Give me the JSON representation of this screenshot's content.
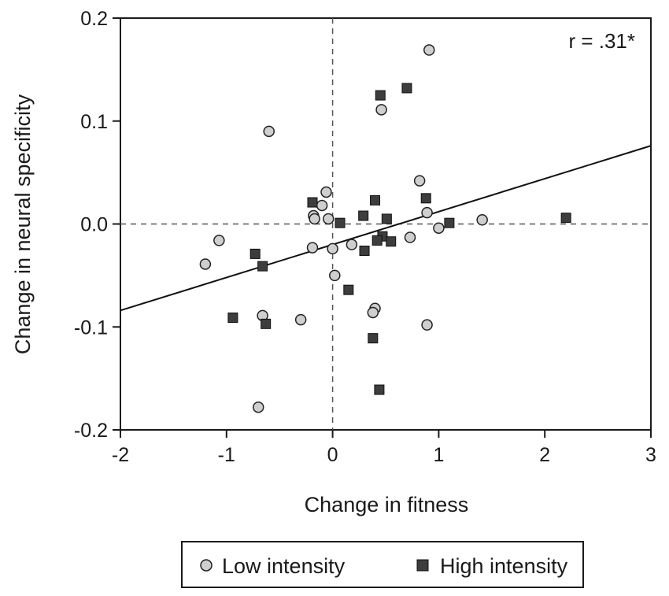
{
  "chart_data": {
    "type": "scatter",
    "title": "",
    "xlabel": "Change in fitness",
    "ylabel": "Change in neural specificity",
    "xlim": [
      -2,
      3
    ],
    "ylim": [
      -0.2,
      0.2
    ],
    "x_ticks": [
      -2,
      -1,
      0,
      1,
      2,
      3
    ],
    "x_tick_labels": [
      "-2",
      "-1",
      "0",
      "1",
      "2",
      "3"
    ],
    "y_ticks": [
      -0.2,
      -0.1,
      0.0,
      0.1,
      0.2
    ],
    "y_tick_labels": [
      "-0.2",
      "-0.1",
      "0.0",
      "0.1",
      "0.2"
    ],
    "reference_lines": {
      "x": 0,
      "y": 0,
      "style": "dashed"
    },
    "annotation": "r = .31*",
    "fit_line": {
      "x": [
        -2,
        3
      ],
      "y": [
        -0.084,
        0.076
      ]
    },
    "series": [
      {
        "name": "Low intensity",
        "marker": "circle",
        "color": "#cfcfcf",
        "points": [
          {
            "x": 0.91,
            "y": 0.169
          },
          {
            "x": 0.46,
            "y": 0.111
          },
          {
            "x": -0.6,
            "y": 0.09
          },
          {
            "x": 0.82,
            "y": 0.042
          },
          {
            "x": -0.06,
            "y": 0.031
          },
          {
            "x": -0.1,
            "y": 0.018
          },
          {
            "x": -0.18,
            "y": 0.008
          },
          {
            "x": -0.17,
            "y": 0.005
          },
          {
            "x": -0.04,
            "y": 0.005
          },
          {
            "x": 0.89,
            "y": 0.011
          },
          {
            "x": 1.41,
            "y": 0.004
          },
          {
            "x": 1.0,
            "y": -0.004
          },
          {
            "x": 0.73,
            "y": -0.013
          },
          {
            "x": -1.07,
            "y": -0.016
          },
          {
            "x": 0.18,
            "y": -0.02
          },
          {
            "x": -0.19,
            "y": -0.023
          },
          {
            "x": 0.0,
            "y": -0.024
          },
          {
            "x": -1.2,
            "y": -0.039
          },
          {
            "x": 0.02,
            "y": -0.05
          },
          {
            "x": 0.4,
            "y": -0.082
          },
          {
            "x": 0.38,
            "y": -0.086
          },
          {
            "x": -0.66,
            "y": -0.089
          },
          {
            "x": -0.3,
            "y": -0.093
          },
          {
            "x": 0.89,
            "y": -0.098
          },
          {
            "x": -0.7,
            "y": -0.178
          }
        ]
      },
      {
        "name": "High intensity",
        "marker": "square",
        "color": "#3d3d3d",
        "points": [
          {
            "x": 0.7,
            "y": 0.132
          },
          {
            "x": 0.45,
            "y": 0.125
          },
          {
            "x": 0.88,
            "y": 0.025
          },
          {
            "x": 0.4,
            "y": 0.023
          },
          {
            "x": -0.19,
            "y": 0.021
          },
          {
            "x": 0.29,
            "y": 0.008
          },
          {
            "x": 0.51,
            "y": 0.005
          },
          {
            "x": 2.2,
            "y": 0.006
          },
          {
            "x": 0.07,
            "y": 0.001
          },
          {
            "x": 1.1,
            "y": 0.001
          },
          {
            "x": 0.47,
            "y": -0.012
          },
          {
            "x": 0.42,
            "y": -0.016
          },
          {
            "x": 0.55,
            "y": -0.017
          },
          {
            "x": 0.3,
            "y": -0.026
          },
          {
            "x": -0.73,
            "y": -0.029
          },
          {
            "x": -0.66,
            "y": -0.041
          },
          {
            "x": 0.15,
            "y": -0.064
          },
          {
            "x": -0.94,
            "y": -0.091
          },
          {
            "x": -0.63,
            "y": -0.097
          },
          {
            "x": 0.38,
            "y": -0.111
          },
          {
            "x": 0.44,
            "y": -0.161
          }
        ]
      }
    ],
    "legend": {
      "placement": "bottom",
      "entries": [
        "Low intensity",
        "High intensity"
      ]
    }
  }
}
